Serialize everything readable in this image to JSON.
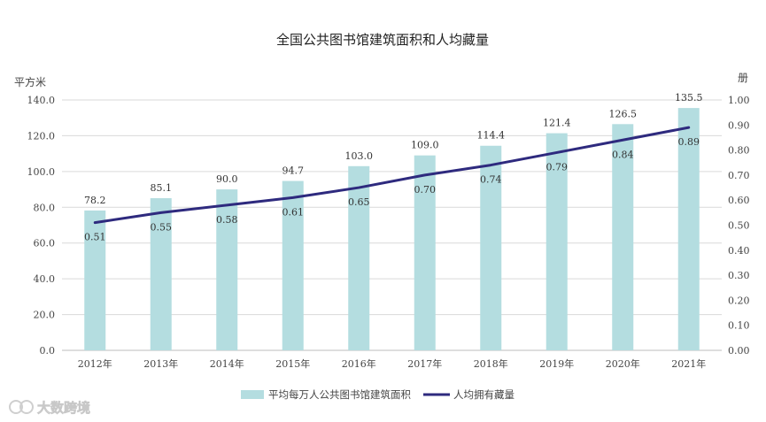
{
  "chart_data": {
    "type": "bar+line",
    "title": "全国公共图书馆建筑面积和人均藏量",
    "categories": [
      "2012年",
      "2013年",
      "2014年",
      "2015年",
      "2016年",
      "2017年",
      "2018年",
      "2019年",
      "2020年",
      "2021年"
    ],
    "series": [
      {
        "name": "平均每万人公共图书馆建筑面积",
        "type": "bar",
        "axis": "left",
        "values": [
          78.2,
          85.1,
          90.0,
          94.7,
          103.0,
          109.0,
          114.4,
          121.4,
          126.5,
          135.5
        ],
        "labels": [
          "78.2",
          "85.1",
          "90.0",
          "94.7",
          "103.0",
          "109.0",
          "114.4",
          "121.4",
          "126.5",
          "135.5"
        ],
        "color": "#b4dde0"
      },
      {
        "name": "人均拥有藏量",
        "type": "line",
        "axis": "right",
        "values": [
          0.51,
          0.55,
          0.58,
          0.61,
          0.65,
          0.7,
          0.74,
          0.79,
          0.84,
          0.89
        ],
        "labels": [
          "0.51",
          "0.55",
          "0.58",
          "0.61",
          "0.65",
          "0.70",
          "0.74",
          "0.79",
          "0.84",
          "0.89"
        ],
        "color": "#2e2a7e"
      }
    ],
    "y_left": {
      "label": "平方米",
      "min": 0,
      "max": 140,
      "step": 20,
      "ticks": [
        "0.0",
        "20.0",
        "40.0",
        "60.0",
        "80.0",
        "100.0",
        "120.0",
        "140.0"
      ]
    },
    "y_right": {
      "label": "册",
      "min": 0,
      "max": 1.0,
      "step": 0.1,
      "ticks": [
        "0.00",
        "0.10",
        "0.20",
        "0.30",
        "0.40",
        "0.50",
        "0.60",
        "0.70",
        "0.80",
        "0.90",
        "1.00"
      ]
    },
    "grid": true,
    "legend_position": "bottom-center"
  },
  "watermark": "大数跨境"
}
